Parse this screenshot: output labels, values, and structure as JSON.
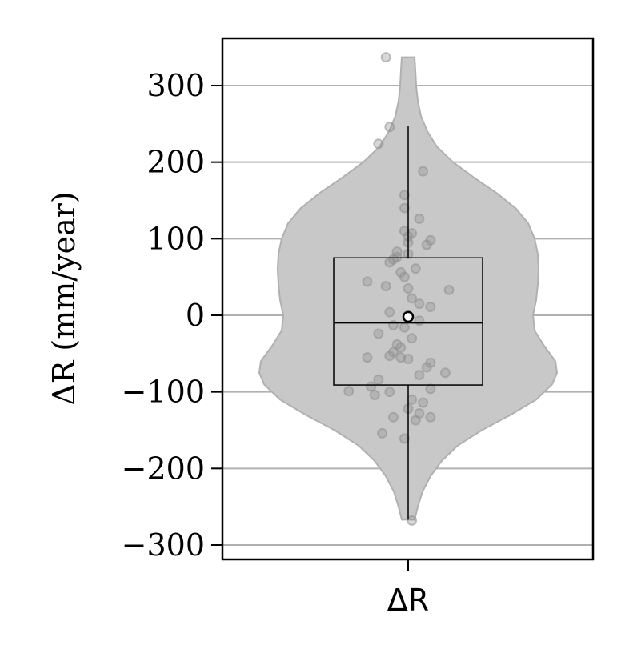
{
  "chart_data": {
    "type": "violin",
    "x_categories": [
      "ΔR"
    ],
    "ylabel": "ΔR (mm/year)",
    "ylim": [
      -320,
      360
    ],
    "yticks": [
      300,
      200,
      100,
      0,
      -100,
      -200,
      -300
    ],
    "ytick_labels": [
      "300",
      "200",
      "100",
      "0",
      "−100",
      "−200",
      "−300"
    ],
    "grid": "horizontal",
    "violin": {
      "extent": [
        -267,
        337
      ],
      "profile": [
        {
          "y": 337,
          "half_width": 8
        },
        {
          "y": 320,
          "half_width": 9
        },
        {
          "y": 300,
          "half_width": 10
        },
        {
          "y": 280,
          "half_width": 12
        },
        {
          "y": 260,
          "half_width": 16
        },
        {
          "y": 240,
          "half_width": 24
        },
        {
          "y": 220,
          "half_width": 36
        },
        {
          "y": 200,
          "half_width": 56
        },
        {
          "y": 180,
          "half_width": 82
        },
        {
          "y": 160,
          "half_width": 110
        },
        {
          "y": 140,
          "half_width": 134
        },
        {
          "y": 120,
          "half_width": 150
        },
        {
          "y": 100,
          "half_width": 158
        },
        {
          "y": 80,
          "half_width": 162
        },
        {
          "y": 60,
          "half_width": 163
        },
        {
          "y": 40,
          "half_width": 162
        },
        {
          "y": 20,
          "half_width": 160
        },
        {
          "y": 0,
          "half_width": 156
        },
        {
          "y": -20,
          "half_width": 158
        },
        {
          "y": -40,
          "half_width": 170
        },
        {
          "y": -60,
          "half_width": 184
        },
        {
          "y": -75,
          "half_width": 186
        },
        {
          "y": -90,
          "half_width": 180
        },
        {
          "y": -110,
          "half_width": 160
        },
        {
          "y": -130,
          "half_width": 128
        },
        {
          "y": -150,
          "half_width": 92
        },
        {
          "y": -170,
          "half_width": 62
        },
        {
          "y": -190,
          "half_width": 42
        },
        {
          "y": -210,
          "half_width": 28
        },
        {
          "y": -230,
          "half_width": 18
        },
        {
          "y": -250,
          "half_width": 12
        },
        {
          "y": -267,
          "half_width": 8
        }
      ],
      "color": "#c8c8c8",
      "edge_color": "#b0b0b0"
    },
    "box": {
      "q1": -91,
      "median": -10,
      "q3": 75,
      "whisker_low": -267,
      "whisker_high": 247,
      "mean": -2
    },
    "points": [
      {
        "x": -0.06,
        "y": 337
      },
      {
        "x": -0.05,
        "y": 246
      },
      {
        "x": -0.08,
        "y": 224
      },
      {
        "x": 0.04,
        "y": 188
      },
      {
        "x": -0.01,
        "y": 157
      },
      {
        "x": -0.01,
        "y": 140
      },
      {
        "x": 0.03,
        "y": 126
      },
      {
        "x": -0.01,
        "y": 110
      },
      {
        "x": 0.01,
        "y": 107
      },
      {
        "x": 0.0,
        "y": 103
      },
      {
        "x": 0.06,
        "y": 98
      },
      {
        "x": 0.0,
        "y": 95
      },
      {
        "x": 0.05,
        "y": 92
      },
      {
        "x": -0.03,
        "y": 83
      },
      {
        "x": 0.0,
        "y": 80
      },
      {
        "x": -0.03,
        "y": 76
      },
      {
        "x": -0.04,
        "y": 73
      },
      {
        "x": -0.05,
        "y": 69
      },
      {
        "x": 0.02,
        "y": 61
      },
      {
        "x": -0.02,
        "y": 56
      },
      {
        "x": -0.01,
        "y": 50
      },
      {
        "x": -0.11,
        "y": 44
      },
      {
        "x": -0.06,
        "y": 38
      },
      {
        "x": 0.0,
        "y": 35
      },
      {
        "x": 0.11,
        "y": 33
      },
      {
        "x": 0.01,
        "y": 22
      },
      {
        "x": 0.03,
        "y": 15
      },
      {
        "x": 0.06,
        "y": 11
      },
      {
        "x": -0.05,
        "y": 4
      },
      {
        "x": 0.0,
        "y": 0
      },
      {
        "x": 0.03,
        "y": -7
      },
      {
        "x": -0.04,
        "y": -13
      },
      {
        "x": -0.01,
        "y": -16
      },
      {
        "x": -0.08,
        "y": -24
      },
      {
        "x": 0.01,
        "y": -30
      },
      {
        "x": -0.03,
        "y": -38
      },
      {
        "x": -0.02,
        "y": -42
      },
      {
        "x": -0.04,
        "y": -48
      },
      {
        "x": -0.05,
        "y": -53
      },
      {
        "x": -0.11,
        "y": -55
      },
      {
        "x": -0.02,
        "y": -55
      },
      {
        "x": 0.0,
        "y": -57
      },
      {
        "x": 0.06,
        "y": -62
      },
      {
        "x": 0.05,
        "y": -68
      },
      {
        "x": 0.1,
        "y": -75
      },
      {
        "x": 0.03,
        "y": -78
      },
      {
        "x": -0.08,
        "y": -84
      },
      {
        "x": -0.1,
        "y": -93
      },
      {
        "x": 0.06,
        "y": -96
      },
      {
        "x": -0.16,
        "y": -99
      },
      {
        "x": -0.05,
        "y": -100
      },
      {
        "x": -0.09,
        "y": -104
      },
      {
        "x": 0.01,
        "y": -110
      },
      {
        "x": 0.04,
        "y": -114
      },
      {
        "x": 0.0,
        "y": -122
      },
      {
        "x": 0.03,
        "y": -128
      },
      {
        "x": -0.04,
        "y": -133
      },
      {
        "x": 0.06,
        "y": -133
      },
      {
        "x": 0.02,
        "y": -137
      },
      {
        "x": -0.07,
        "y": -154
      },
      {
        "x": -0.01,
        "y": -161
      },
      {
        "x": 0.01,
        "y": -268
      }
    ],
    "point_color": "#909090"
  }
}
